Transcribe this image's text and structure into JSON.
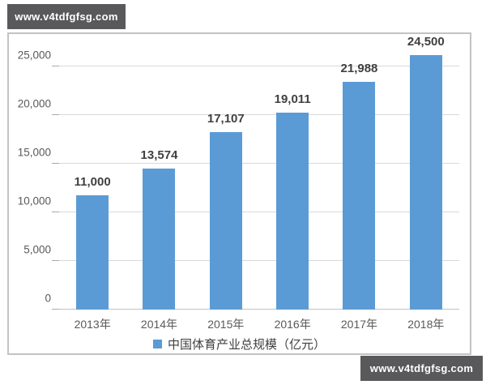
{
  "watermark_top": {
    "text": "www.v4tdfgfsg.com"
  },
  "watermark_bottom": {
    "text": "www.v4tdfgfsg.com"
  },
  "chart_data": {
    "type": "bar",
    "categories": [
      "2013年",
      "2014年",
      "2015年",
      "2016年",
      "2017年",
      "2018年"
    ],
    "values": [
      11000,
      13574,
      17107,
      19011,
      21988,
      24500
    ],
    "value_labels": [
      "11,000",
      "13,574",
      "17,107",
      "19,011",
      "21,988",
      "24,500"
    ],
    "yticks": [
      0,
      5000,
      10000,
      15000,
      20000,
      25000
    ],
    "ytick_labels": [
      "0",
      "5,000",
      "10,000",
      "15,000",
      "20,000",
      "25,000"
    ],
    "ylim": [
      0,
      25000
    ],
    "title": "",
    "xlabel": "",
    "ylabel": "",
    "grid": true,
    "legend": "中国体育产业总规模（亿元）",
    "legend_position": "bottom"
  },
  "colors": {
    "bar": "#5B9BD5",
    "legend_swatch": "#5B9BD5",
    "watermark_bg": "#59595B",
    "watermark_text": "#FFFFFF",
    "gridline": "#D9D9D9",
    "axis_text": "#595959",
    "value_text": "#404040"
  }
}
